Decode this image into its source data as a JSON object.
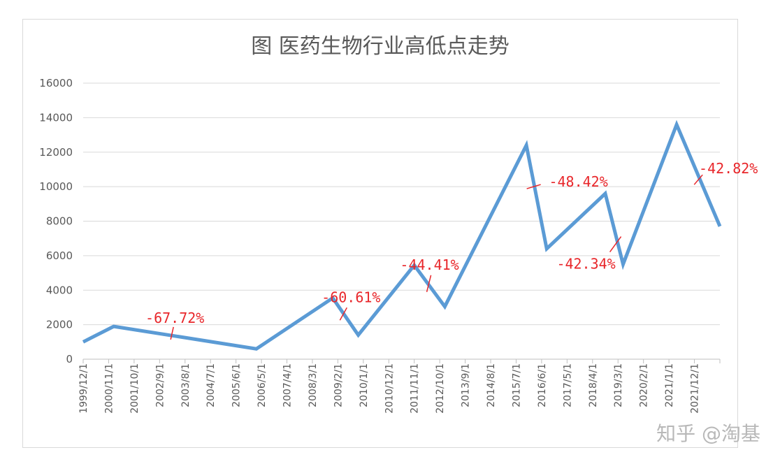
{
  "chart_data": {
    "type": "line",
    "title": "图 医药生物行业高低点走势",
    "xlabel": "",
    "ylabel": "",
    "ylim": [
      0,
      16000
    ],
    "yticks": [
      "0",
      "2000",
      "4000",
      "6000",
      "8000",
      "10000",
      "12000",
      "14000",
      "16000"
    ],
    "xticks": [
      "1999/12/1",
      "2000/11/1",
      "2001/10/1",
      "2002/9/1",
      "2003/8/1",
      "2004/7/1",
      "2005/6/1",
      "2006/5/1",
      "2007/4/1",
      "2008/3/1",
      "2009/2/1",
      "2010/1/1",
      "2010/12/1",
      "2011/11/1",
      "2012/10/1",
      "2013/9/1",
      "2014/8/1",
      "2015/7/1",
      "2016/6/1",
      "2017/5/1",
      "2018/4/1",
      "2019/3/1",
      "2020/2/1",
      "2021/1/1",
      "2021/12/1"
    ],
    "grid": true,
    "color": "#5b9bd5",
    "series": [
      {
        "points": [
          {
            "t": 0.0,
            "y": 1000
          },
          {
            "t": 1.2,
            "y": 1900
          },
          {
            "t": 6.8,
            "y": 600
          },
          {
            "t": 9.8,
            "y": 3550
          },
          {
            "t": 10.8,
            "y": 1400
          },
          {
            "t": 13.0,
            "y": 5450
          },
          {
            "t": 14.2,
            "y": 3050
          },
          {
            "t": 17.4,
            "y": 12400
          },
          {
            "t": 18.2,
            "y": 6400
          },
          {
            "t": 20.5,
            "y": 9600
          },
          {
            "t": 21.2,
            "y": 5500
          },
          {
            "t": 23.3,
            "y": 13600
          },
          {
            "t": 25.0,
            "y": 7700
          }
        ]
      }
    ],
    "annotations": [
      {
        "text": "-67.72%",
        "at": 3.6,
        "y": 1300
      },
      {
        "text": "-60.61%",
        "at": 10.3,
        "y": 2500
      },
      {
        "text": "-44.41%",
        "at": 13.6,
        "y": 4300
      },
      {
        "text": "-48.42%",
        "at": 17.8,
        "y": 9800
      },
      {
        "text": "-42.34%",
        "at": 20.9,
        "y": 6700
      },
      {
        "text": "-42.82%",
        "at": 24.1,
        "y": 10200
      }
    ]
  },
  "watermark": "知乎 @淘基"
}
